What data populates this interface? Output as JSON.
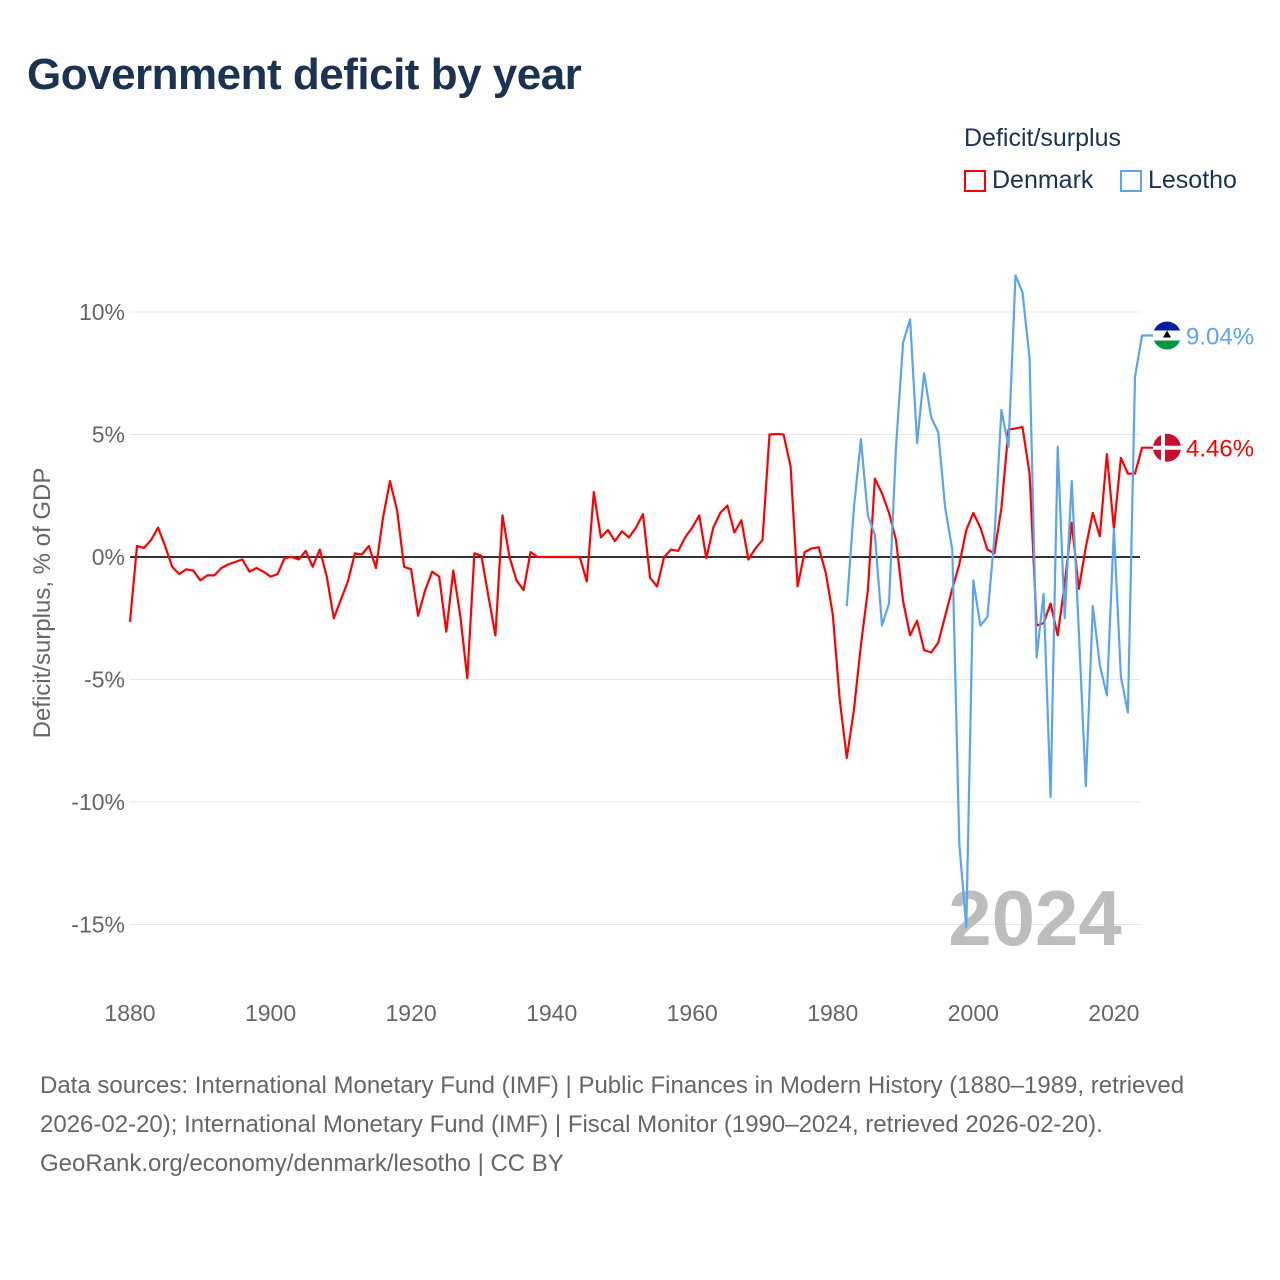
{
  "title": "Government deficit by year",
  "legend": {
    "title": "Deficit/surplus",
    "items": [
      {
        "name": "Denmark",
        "color": "#ff0000"
      },
      {
        "name": "Lesotho",
        "color": "#5aa5ee"
      }
    ]
  },
  "footer": {
    "sources": "Data sources: International Monetary Fund (IMF) | Public Finances in Modern History (1880–1989, retrieved 2026-02-20); International Monetary Fund (IMF) | Fiscal Monitor (1990–2024, retrieved 2026-02-20).",
    "credit": "GeoRank.org/economy/denmark/lesotho | CC BY"
  },
  "chart_data": {
    "type": "line",
    "title": "Government deficit by year",
    "xlabel": "",
    "ylabel": "Deficit/surplus, % of GDP",
    "xlim": [
      1880,
      2024
    ],
    "ylim": [
      -15,
      10
    ],
    "x_ticks": [
      1880,
      1900,
      1920,
      1940,
      1960,
      1980,
      2000,
      2020
    ],
    "y_ticks": [
      10,
      5,
      0,
      -5,
      -10,
      -15
    ],
    "y_tick_labels": [
      "10%",
      "5%",
      "0%",
      "-5%",
      "-10%",
      "-15%"
    ],
    "x_tick_labels": [
      "1880",
      "1900",
      "1920",
      "1940",
      "1960",
      "1980",
      "2000",
      "2020"
    ],
    "current_year": "2024",
    "grid": true,
    "legend_position": "top-right",
    "series": [
      {
        "name": "Denmark",
        "color": "#ff0000",
        "start_year": 1880,
        "end_label": "4.46%",
        "values": [
          -2.65,
          0.45,
          0.37,
          0.7,
          1.2,
          0.45,
          -0.4,
          -0.7,
          -0.5,
          -0.55,
          -0.95,
          -0.75,
          -0.75,
          -0.45,
          -0.3,
          -0.2,
          -0.1,
          -0.6,
          -0.45,
          -0.6,
          -0.8,
          -0.7,
          -0.05,
          0,
          -0.1,
          0.25,
          -0.4,
          0.3,
          -0.8,
          -2.5,
          -1.75,
          -1.0,
          0.15,
          0.1,
          0.45,
          -0.45,
          1.6,
          3.1,
          1.9,
          -0.4,
          -0.5,
          -2.4,
          -1.35,
          -0.6,
          -0.8,
          -3.05,
          -0.55,
          -2.4,
          -4.95,
          0.15,
          0.05,
          -1.6,
          -3.2,
          1.7,
          0,
          -0.95,
          -1.35,
          0.2,
          0,
          0,
          0,
          0,
          0,
          0,
          0,
          -1.0,
          2.65,
          0.8,
          1.1,
          0.65,
          1.05,
          0.8,
          1.2,
          1.75,
          -0.85,
          -1.2,
          0,
          0.3,
          0.25,
          0.8,
          1.2,
          1.7,
          -0.05,
          1.2,
          1.8,
          2.1,
          1.0,
          1.5,
          -0.1,
          0.35,
          0.7,
          5.0,
          5.02,
          5.0,
          3.7,
          -1.2,
          0.2,
          0.35,
          0.4,
          -0.65,
          -2.35,
          -5.85,
          -8.2,
          -6.25,
          -3.6,
          -1.35,
          3.2,
          2.6,
          1.8,
          0.7,
          -1.8,
          -3.2,
          -2.6,
          -3.8,
          -3.9,
          -3.5,
          -2.4,
          -1.3,
          -0.3,
          1.1,
          1.8,
          1.2,
          0.3,
          0.15,
          2.0,
          5.2,
          5.25,
          5.3,
          3.4,
          -2.8,
          -2.7,
          -1.9,
          -3.2,
          -1.1,
          1.4,
          -1.3,
          0.4,
          1.8,
          0.85,
          4.2,
          1.15,
          4.05,
          3.4,
          3.4,
          4.46
        ]
      },
      {
        "name": "Lesotho",
        "color": "#5aa5ee",
        "start_year": 1982,
        "end_label": "9.04%",
        "values": [
          -2.0,
          2.0,
          4.8,
          1.7,
          0.9,
          -2.8,
          -1.9,
          4.5,
          8.75,
          9.7,
          4.65,
          7.5,
          5.7,
          5.1,
          2.0,
          0.3,
          -11.7,
          -15.1,
          -0.95,
          -2.8,
          -2.45,
          0.8,
          6.0,
          4.5,
          11.5,
          10.8,
          8.1,
          -4.1,
          -1.5,
          -9.8,
          4.5,
          -2.5,
          3.1,
          -3.0,
          -9.35,
          -2.0,
          -4.4,
          -5.65,
          1.15,
          -4.9,
          -6.35,
          7.35,
          9.04
        ]
      }
    ]
  }
}
